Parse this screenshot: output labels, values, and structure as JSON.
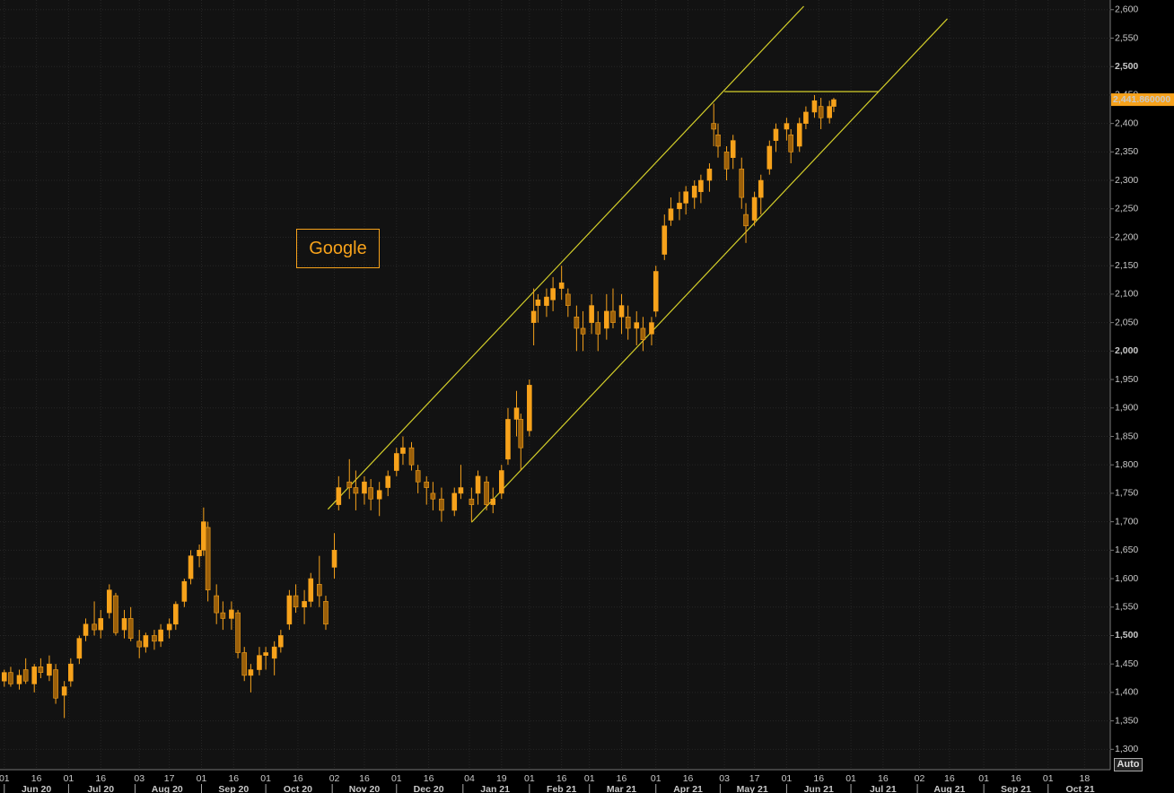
{
  "chart_data": {
    "type": "candlestick",
    "annotation": "Google",
    "auto_button": "Auto",
    "color": "#f7a21b",
    "trend_color": "#d4cf2a",
    "xlim": [
      "2020-05-30",
      "2021-10-30"
    ],
    "ylim": [
      1280,
      2617
    ],
    "yticks": [
      {
        "value": 1300,
        "label": "1,300"
      },
      {
        "value": 1350,
        "label": "1,350"
      },
      {
        "value": 1400,
        "label": "1,400"
      },
      {
        "value": 1450,
        "label": "1,450"
      },
      {
        "value": 1500,
        "label": "1,500"
      },
      {
        "value": 1550,
        "label": "1,550"
      },
      {
        "value": 1600,
        "label": "1,600"
      },
      {
        "value": 1650,
        "label": "1,650"
      },
      {
        "value": 1700,
        "label": "1,700"
      },
      {
        "value": 1750,
        "label": "1,750"
      },
      {
        "value": 1800,
        "label": "1,800"
      },
      {
        "value": 1850,
        "label": "1,850"
      },
      {
        "value": 1900,
        "label": "1,900"
      },
      {
        "value": 1950,
        "label": "1,950"
      },
      {
        "value": 2000,
        "label": "2,000"
      },
      {
        "value": 2050,
        "label": "2,050"
      },
      {
        "value": 2100,
        "label": "2,100"
      },
      {
        "value": 2150,
        "label": "2,150"
      },
      {
        "value": 2200,
        "label": "2,200"
      },
      {
        "value": 2250,
        "label": "2,250"
      },
      {
        "value": 2300,
        "label": "2,300"
      },
      {
        "value": 2350,
        "label": "2,350"
      },
      {
        "value": 2400,
        "label": "2,400"
      },
      {
        "value": 2450,
        "label": "2,450"
      },
      {
        "value": 2500,
        "label": "2,500"
      },
      {
        "value": 2550,
        "label": "2,550"
      },
      {
        "value": 2600,
        "label": "2,600"
      }
    ],
    "xticks": [
      {
        "value": "2020-06-01",
        "label": "01"
      },
      {
        "value": "2020-06-16",
        "label": "16"
      },
      {
        "value": "2020-07-01",
        "label": "01"
      },
      {
        "value": "2020-07-16",
        "label": "16"
      },
      {
        "value": "2020-08-03",
        "label": "03"
      },
      {
        "value": "2020-08-17",
        "label": "17"
      },
      {
        "value": "2020-09-01",
        "label": "01"
      },
      {
        "value": "2020-09-16",
        "label": "16"
      },
      {
        "value": "2020-10-01",
        "label": "01"
      },
      {
        "value": "2020-10-16",
        "label": "16"
      },
      {
        "value": "2020-11-02",
        "label": "02"
      },
      {
        "value": "2020-11-16",
        "label": "16"
      },
      {
        "value": "2020-12-01",
        "label": "01"
      },
      {
        "value": "2020-12-16",
        "label": "16"
      },
      {
        "value": "2021-01-04",
        "label": "04"
      },
      {
        "value": "2021-01-19",
        "label": "19"
      },
      {
        "value": "2021-02-01",
        "label": "01"
      },
      {
        "value": "2021-02-16",
        "label": "16"
      },
      {
        "value": "2021-03-01",
        "label": "01"
      },
      {
        "value": "2021-03-16",
        "label": "16"
      },
      {
        "value": "2021-04-01",
        "label": "01"
      },
      {
        "value": "2021-04-16",
        "label": "16"
      },
      {
        "value": "2021-05-03",
        "label": "03"
      },
      {
        "value": "2021-05-17",
        "label": "17"
      },
      {
        "value": "2021-06-01",
        "label": "01"
      },
      {
        "value": "2021-06-16",
        "label": "16"
      },
      {
        "value": "2021-07-01",
        "label": "01"
      },
      {
        "value": "2021-07-16",
        "label": "16"
      },
      {
        "value": "2021-08-02",
        "label": "02"
      },
      {
        "value": "2021-08-16",
        "label": "16"
      },
      {
        "value": "2021-09-01",
        "label": "01"
      },
      {
        "value": "2021-09-16",
        "label": "16"
      },
      {
        "value": "2021-10-01",
        "label": "01"
      },
      {
        "value": "2021-10-18",
        "label": "18"
      }
    ],
    "months": [
      {
        "value": "2020-06",
        "label": "Jun 20"
      },
      {
        "value": "2020-07",
        "label": "Jul 20"
      },
      {
        "value": "2020-08",
        "label": "Aug 20"
      },
      {
        "value": "2020-09",
        "label": "Sep 20"
      },
      {
        "value": "2020-10",
        "label": "Oct 20"
      },
      {
        "value": "2020-11",
        "label": "Nov 20"
      },
      {
        "value": "2020-12",
        "label": "Dec 20"
      },
      {
        "value": "2021-01",
        "label": "Jan 21"
      },
      {
        "value": "2021-02",
        "label": "Feb 21"
      },
      {
        "value": "2021-03",
        "label": "Mar 21"
      },
      {
        "value": "2021-04",
        "label": "Apr 21"
      },
      {
        "value": "2021-05",
        "label": "May 21"
      },
      {
        "value": "2021-06",
        "label": "Jun 21"
      },
      {
        "value": "2021-07",
        "label": "Jul 21"
      },
      {
        "value": "2021-08",
        "label": "Aug 21"
      },
      {
        "value": "2021-09",
        "label": "Sep 21"
      },
      {
        "value": "2021-10",
        "label": "Oct 21"
      }
    ],
    "last_price": {
      "value": 2441.86,
      "label": "2,441.860000"
    },
    "trendlines": [
      {
        "x": [
          "2020-10-30",
          "2021-06-09"
        ],
        "y": [
          1722,
          2606
        ]
      },
      {
        "x": [
          "2021-01-05",
          "2021-08-15"
        ],
        "y": [
          1699,
          2584
        ]
      },
      {
        "x": [
          "2021-05-03",
          "2021-07-14"
        ],
        "y": [
          2456,
          2456
        ]
      }
    ],
    "x": [
      "2020-06-01",
      "2020-06-04",
      "2020-06-08",
      "2020-06-11",
      "2020-06-15",
      "2020-06-18",
      "2020-06-22",
      "2020-06-25",
      "2020-06-29",
      "2020-07-02",
      "2020-07-06",
      "2020-07-09",
      "2020-07-13",
      "2020-07-16",
      "2020-07-20",
      "2020-07-23",
      "2020-07-27",
      "2020-07-30",
      "2020-08-03",
      "2020-08-06",
      "2020-08-10",
      "2020-08-13",
      "2020-08-17",
      "2020-08-20",
      "2020-08-24",
      "2020-08-27",
      "2020-08-31",
      "2020-09-02",
      "2020-09-04",
      "2020-09-08",
      "2020-09-11",
      "2020-09-15",
      "2020-09-18",
      "2020-09-21",
      "2020-09-24",
      "2020-09-28",
      "2020-10-01",
      "2020-10-05",
      "2020-10-08",
      "2020-10-12",
      "2020-10-15",
      "2020-10-19",
      "2020-10-22",
      "2020-10-26",
      "2020-10-29",
      "2020-11-02",
      "2020-11-04",
      "2020-11-09",
      "2020-11-12",
      "2020-11-16",
      "2020-11-19",
      "2020-11-23",
      "2020-11-27",
      "2020-12-01",
      "2020-12-04",
      "2020-12-08",
      "2020-12-11",
      "2020-12-15",
      "2020-12-18",
      "2020-12-22",
      "2020-12-28",
      "2020-12-31",
      "2021-01-05",
      "2021-01-08",
      "2021-01-12",
      "2021-01-15",
      "2021-01-19",
      "2021-01-22",
      "2021-01-26",
      "2021-01-28",
      "2021-02-01",
      "2021-02-03",
      "2021-02-05",
      "2021-02-09",
      "2021-02-12",
      "2021-02-16",
      "2021-02-19",
      "2021-02-23",
      "2021-02-26",
      "2021-03-02",
      "2021-03-05",
      "2021-03-09",
      "2021-03-12",
      "2021-03-16",
      "2021-03-19",
      "2021-03-23",
      "2021-03-26",
      "2021-03-30",
      "2021-04-01",
      "2021-04-05",
      "2021-04-08",
      "2021-04-12",
      "2021-04-15",
      "2021-04-19",
      "2021-04-22",
      "2021-04-26",
      "2021-04-28",
      "2021-04-30",
      "2021-05-04",
      "2021-05-07",
      "2021-05-11",
      "2021-05-13",
      "2021-05-17",
      "2021-05-20",
      "2021-05-24",
      "2021-05-27",
      "2021-06-01",
      "2021-06-03",
      "2021-06-07",
      "2021-06-10",
      "2021-06-14",
      "2021-06-17",
      "2021-06-21",
      "2021-06-23"
    ],
    "open": [
      1420,
      1435,
      1415,
      1440,
      1415,
      1445,
      1430,
      1440,
      1395,
      1420,
      1460,
      1500,
      1520,
      1510,
      1540,
      1570,
      1510,
      1530,
      1490,
      1480,
      1500,
      1490,
      1510,
      1520,
      1560,
      1600,
      1640,
      1650,
      1690,
      1570,
      1540,
      1530,
      1540,
      1470,
      1430,
      1440,
      1465,
      1460,
      1480,
      1520,
      1570,
      1550,
      1560,
      1590,
      1560,
      1620,
      1730,
      1770,
      1760,
      1750,
      1760,
      1740,
      1760,
      1790,
      1820,
      1830,
      1790,
      1770,
      1750,
      1740,
      1720,
      1750,
      1740,
      1750,
      1770,
      1730,
      1750,
      1810,
      1880,
      1880,
      1860,
      2050,
      2080,
      2080,
      2090,
      2110,
      2100,
      2060,
      2040,
      2050,
      2050,
      2040,
      2070,
      2060,
      2060,
      2040,
      2040,
      2030,
      2070,
      2170,
      2230,
      2250,
      2260,
      2270,
      2280,
      2300,
      2400,
      2380,
      2350,
      2340,
      2320,
      2240,
      2230,
      2270,
      2320,
      2370,
      2390,
      2380,
      2360,
      2400,
      2420,
      2430,
      2410,
      2430
    ],
    "high": [
      1440,
      1445,
      1440,
      1460,
      1450,
      1460,
      1465,
      1450,
      1420,
      1460,
      1500,
      1530,
      1560,
      1545,
      1590,
      1575,
      1545,
      1550,
      1510,
      1505,
      1510,
      1520,
      1530,
      1560,
      1600,
      1650,
      1660,
      1725,
      1700,
      1590,
      1560,
      1560,
      1545,
      1480,
      1450,
      1480,
      1480,
      1490,
      1510,
      1580,
      1590,
      1580,
      1610,
      1640,
      1570,
      1680,
      1780,
      1810,
      1790,
      1780,
      1775,
      1770,
      1790,
      1830,
      1850,
      1840,
      1800,
      1780,
      1770,
      1760,
      1760,
      1800,
      1760,
      1790,
      1780,
      1760,
      1800,
      1900,
      1930,
      1890,
      1950,
      2110,
      2100,
      2110,
      2130,
      2150,
      2110,
      2080,
      2070,
      2100,
      2070,
      2100,
      2110,
      2100,
      2080,
      2070,
      2060,
      2060,
      2150,
      2240,
      2270,
      2280,
      2290,
      2300,
      2310,
      2330,
      2435,
      2400,
      2360,
      2380,
      2340,
      2260,
      2280,
      2310,
      2370,
      2400,
      2410,
      2390,
      2410,
      2430,
      2450,
      2445,
      2440,
      2445
    ],
    "low": [
      1410,
      1410,
      1405,
      1415,
      1400,
      1425,
      1420,
      1380,
      1355,
      1410,
      1450,
      1490,
      1500,
      1495,
      1530,
      1500,
      1495,
      1490,
      1460,
      1470,
      1475,
      1480,
      1495,
      1510,
      1550,
      1590,
      1620,
      1640,
      1560,
      1520,
      1510,
      1510,
      1460,
      1420,
      1400,
      1430,
      1440,
      1430,
      1470,
      1510,
      1540,
      1520,
      1550,
      1550,
      1510,
      1600,
      1720,
      1740,
      1720,
      1730,
      1720,
      1710,
      1745,
      1780,
      1800,
      1790,
      1750,
      1730,
      1720,
      1700,
      1710,
      1740,
      1700,
      1730,
      1720,
      1715,
      1740,
      1800,
      1850,
      1790,
      1850,
      2010,
      2050,
      2060,
      2070,
      2090,
      2060,
      2000,
      2000,
      2030,
      2000,
      2020,
      2040,
      2030,
      2020,
      2010,
      2000,
      2010,
      2060,
      2160,
      2220,
      2230,
      2240,
      2250,
      2260,
      2280,
      2360,
      2340,
      2300,
      2320,
      2250,
      2190,
      2220,
      2240,
      2310,
      2350,
      2370,
      2330,
      2350,
      2390,
      2410,
      2390,
      2400,
      2420
    ],
    "close": [
      1435,
      1415,
      1430,
      1420,
      1445,
      1435,
      1450,
      1390,
      1410,
      1450,
      1495,
      1520,
      1510,
      1530,
      1580,
      1505,
      1530,
      1495,
      1480,
      1500,
      1490,
      1510,
      1520,
      1555,
      1595,
      1640,
      1650,
      1700,
      1580,
      1540,
      1530,
      1545,
      1470,
      1430,
      1440,
      1465,
      1470,
      1480,
      1500,
      1570,
      1550,
      1560,
      1600,
      1570,
      1520,
      1650,
      1760,
      1760,
      1750,
      1770,
      1740,
      1755,
      1780,
      1820,
      1830,
      1800,
      1770,
      1760,
      1740,
      1720,
      1750,
      1760,
      1730,
      1780,
      1730,
      1740,
      1790,
      1880,
      1900,
      1830,
      1940,
      2070,
      2090,
      2095,
      2110,
      2120,
      2080,
      2040,
      2030,
      2080,
      2030,
      2070,
      2050,
      2080,
      2040,
      2050,
      2020,
      2050,
      2140,
      2220,
      2250,
      2260,
      2280,
      2290,
      2300,
      2320,
      2390,
      2360,
      2320,
      2370,
      2270,
      2220,
      2270,
      2300,
      2360,
      2390,
      2400,
      2350,
      2400,
      2420,
      2440,
      2410,
      2430,
      2441.86
    ]
  }
}
